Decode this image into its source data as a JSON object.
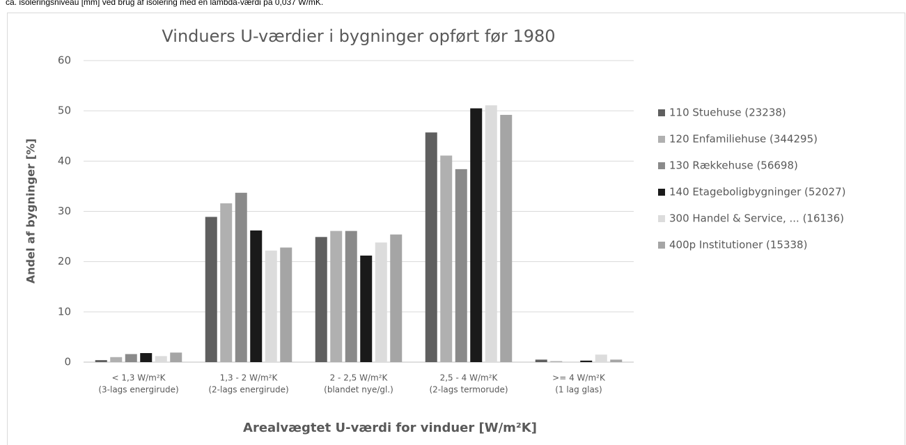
{
  "caption": "ca. isoleringsniveau [mm] ved brug af isolering med en lambda-værdi på 0,037 W/mK.",
  "chart_data": {
    "type": "bar",
    "title": "Vinduers U-værdier i bygninger opført før 1980",
    "x_label": "Arealvægtet U-værdi for vinduer [W/m²K]",
    "y_label": "Andel af bygninger [%]",
    "categories": [
      [
        "< 1,3 W/m²K",
        "(3-lags energirude)"
      ],
      [
        "1,3 - 2 W/m²K",
        "(2-lags energirude)"
      ],
      [
        "2 - 2,5 W/m²K",
        "(blandet nye/gl.)"
      ],
      [
        "2,5 - 4 W/m²K",
        "(2-lags termorude)"
      ],
      [
        ">= 4 W/m²K",
        "(1 lag glas)"
      ]
    ],
    "series": [
      {
        "name": "110 Stuehuse (23238)",
        "color": "#5f5f5f",
        "values": [
          0.4,
          28.9,
          24.9,
          45.7,
          0.5
        ]
      },
      {
        "name": "120 Enfamiliehuse (344295)",
        "color": "#b0b0b0",
        "values": [
          1.0,
          31.6,
          26.1,
          41.1,
          0.2
        ]
      },
      {
        "name": "130 Rækkehuse (56698)",
        "color": "#8a8a8a",
        "values": [
          1.6,
          33.7,
          26.1,
          38.4,
          0.0
        ]
      },
      {
        "name": "140 Etageboligbygninger (52027)",
        "color": "#1a1a1a",
        "values": [
          1.8,
          26.2,
          21.2,
          50.5,
          0.3
        ]
      },
      {
        "name": "300 Handel & Service, ... (16136)",
        "color": "#dcdcdc",
        "values": [
          1.2,
          22.2,
          23.8,
          51.1,
          1.5
        ]
      },
      {
        "name": "400p Institutioner (15338)",
        "color": "#a5a5a5",
        "values": [
          1.9,
          22.8,
          25.4,
          49.2,
          0.5
        ]
      }
    ],
    "ylim": [
      0,
      60
    ],
    "yticks": [
      0,
      10,
      20,
      30,
      40,
      50,
      60
    ],
    "grid": true,
    "legend": "right"
  }
}
